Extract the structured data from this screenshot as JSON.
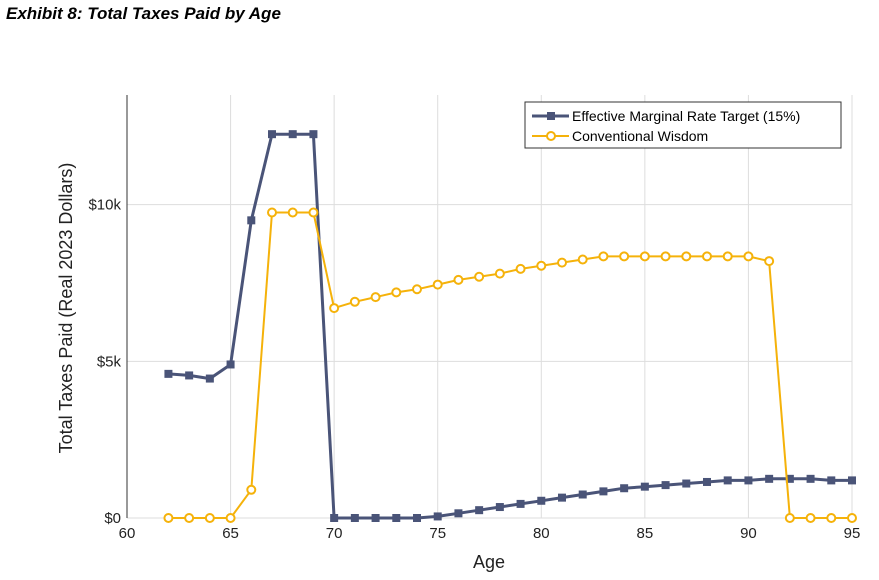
{
  "exhibit_title": "Exhibit 8: Total Taxes Paid by Age",
  "chart_data": {
    "type": "line",
    "title": "Exhibit 8: Total Taxes Paid by Age",
    "xlabel": "Age",
    "ylabel": "Total Taxes Paid (Real 2023 Dollars)",
    "xlim": [
      60,
      95
    ],
    "ylim": [
      0,
      13500
    ],
    "xticks": [
      60,
      65,
      70,
      75,
      80,
      85,
      90,
      95
    ],
    "xtick_labels": [
      "60",
      "65",
      "70",
      "75",
      "80",
      "85",
      "90",
      "95"
    ],
    "yticks": [
      0,
      5000,
      10000
    ],
    "ytick_labels": [
      "$0",
      "$5k",
      "$10k"
    ],
    "grid": true,
    "legend_position": "top-right",
    "x": [
      62,
      63,
      64,
      65,
      66,
      67,
      68,
      69,
      70,
      71,
      72,
      73,
      74,
      75,
      76,
      77,
      78,
      79,
      80,
      81,
      82,
      83,
      84,
      85,
      86,
      87,
      88,
      89,
      90,
      91,
      92,
      93,
      94,
      95
    ],
    "series": [
      {
        "name": "Effective Marginal Rate Target (15%)",
        "color": "#4a5478",
        "marker": "square",
        "values": [
          4600,
          4550,
          4450,
          4900,
          9500,
          12250,
          12250,
          12250,
          0,
          0,
          0,
          0,
          0,
          50,
          150,
          250,
          350,
          450,
          550,
          650,
          750,
          850,
          950,
          1000,
          1050,
          1100,
          1150,
          1200,
          1200,
          1250,
          1250,
          1250,
          1200,
          1200
        ]
      },
      {
        "name": "Conventional Wisdom",
        "color": "#f5b20a",
        "marker": "circle",
        "values": [
          0,
          0,
          0,
          0,
          900,
          9750,
          9750,
          9750,
          6700,
          6900,
          7050,
          7200,
          7300,
          7450,
          7600,
          7700,
          7800,
          7950,
          8050,
          8150,
          8250,
          8350,
          8350,
          8350,
          8350,
          8350,
          8350,
          8350,
          8350,
          8200,
          0,
          0,
          0,
          0
        ]
      }
    ]
  }
}
